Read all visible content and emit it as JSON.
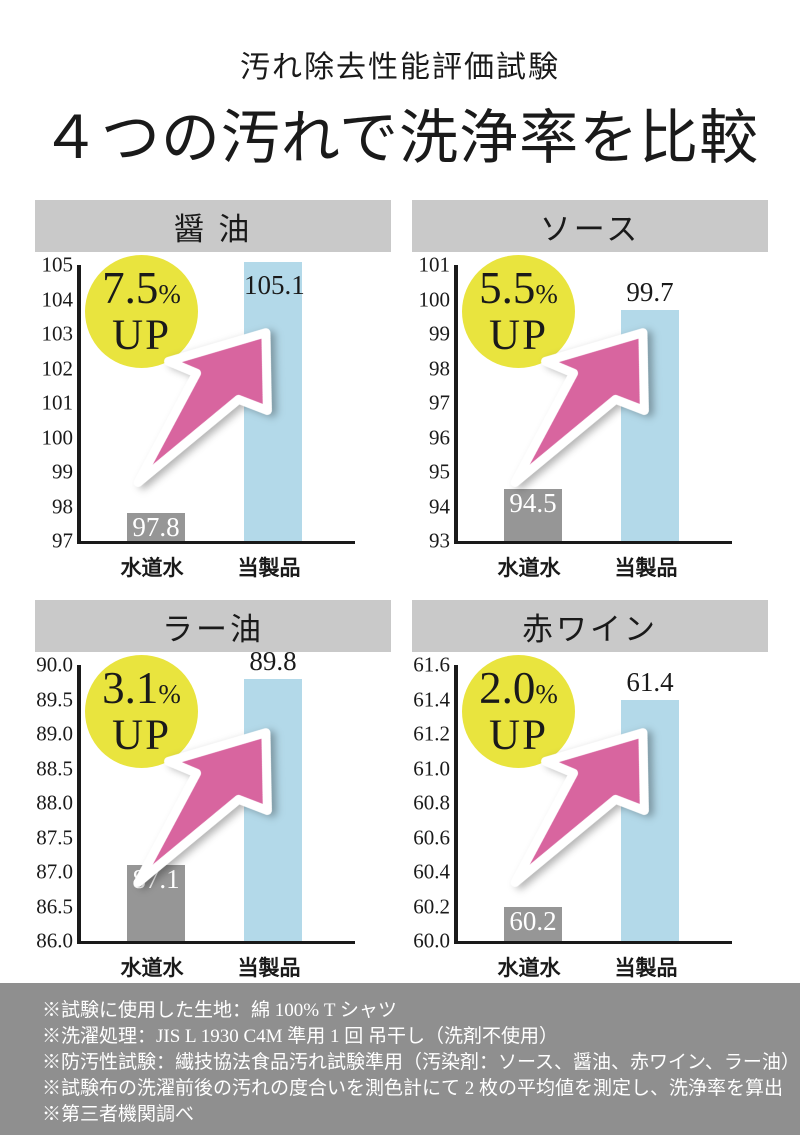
{
  "page": {
    "subtitle": "汚れ除去性能評価試験",
    "title": "４つの汚れで洗浄率を比較"
  },
  "colors": {
    "header_bg": "#c9c9c9",
    "tap_water_bar": "#969696",
    "product_bar": "#b3d9e9",
    "badge_bg": "#e9e43e",
    "arrow_pink": "#d8659f",
    "footer_bg": "#8f8f8f"
  },
  "chart_data": [
    {
      "type": "bar",
      "title": "醤 油",
      "categories": [
        "水道水",
        "当製品"
      ],
      "values": [
        97.8,
        105.1
      ],
      "value_labels": [
        "97.8",
        "105.1"
      ],
      "ylim": [
        97,
        105
      ],
      "yticks": [
        "105",
        "104",
        "103",
        "102",
        "101",
        "100",
        "99",
        "98",
        "97"
      ],
      "grid": false,
      "legend": "none",
      "badge": {
        "value": "7.5",
        "percent": "%",
        "up": "UP"
      },
      "product_label_inside": true
    },
    {
      "type": "bar",
      "title": "ソース",
      "categories": [
        "水道水",
        "当製品"
      ],
      "values": [
        94.5,
        99.7
      ],
      "value_labels": [
        "94.5",
        "99.7"
      ],
      "ylim": [
        93,
        101
      ],
      "yticks": [
        "101",
        "100",
        "99",
        "98",
        "97",
        "96",
        "95",
        "94",
        "93"
      ],
      "grid": false,
      "legend": "none",
      "badge": {
        "value": "5.5",
        "percent": "%",
        "up": "UP"
      },
      "product_label_inside": false
    },
    {
      "type": "bar",
      "title": "ラー油",
      "categories": [
        "水道水",
        "当製品"
      ],
      "values": [
        87.1,
        89.8
      ],
      "value_labels": [
        "87.1",
        "89.8"
      ],
      "ylim": [
        86.0,
        90.0
      ],
      "yticks": [
        "90.0",
        "89.5",
        "89.0",
        "88.5",
        "88.0",
        "87.5",
        "87.0",
        "86.5",
        "86.0"
      ],
      "grid": false,
      "legend": "none",
      "badge": {
        "value": "3.1",
        "percent": "%",
        "up": "UP"
      },
      "product_label_inside": false
    },
    {
      "type": "bar",
      "title": "赤ワイン",
      "categories": [
        "水道水",
        "当製品"
      ],
      "values": [
        60.2,
        61.4
      ],
      "value_labels": [
        "60.2",
        "61.4"
      ],
      "ylim": [
        60.0,
        61.6
      ],
      "yticks": [
        "61.6",
        "61.4",
        "61.2",
        "61.0",
        "60.8",
        "60.6",
        "60.4",
        "60.2",
        "60.0"
      ],
      "grid": false,
      "legend": "none",
      "badge": {
        "value": "2.0",
        "percent": "%",
        "up": "UP"
      },
      "product_label_inside": false
    }
  ],
  "footer": {
    "notes": [
      "※試験に使用した生地：綿 100% T シャツ",
      "※洗濯処理：JIS L 1930 C4M 準用 1 回 吊干し（洗剤不使用）",
      "※防汚性試験：繊技協法食品汚れ試験準用（汚染剤：ソース、醤油、赤ワイン、ラー油）",
      "※試験布の洗濯前後の汚れの度合いを測色計にて 2 枚の平均値を測定し、洗浄率を算出",
      "※第三者機関調べ"
    ]
  }
}
